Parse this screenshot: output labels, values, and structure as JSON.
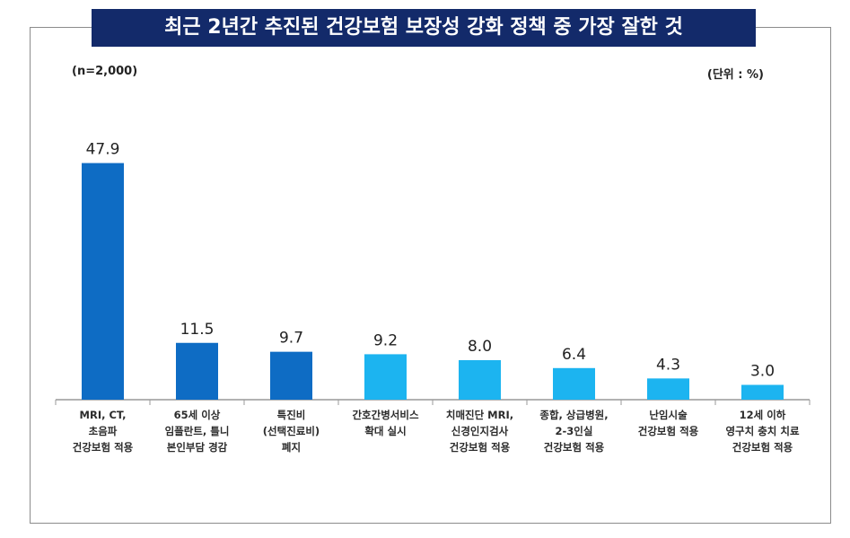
{
  "header": {
    "title": "최근 2년간 추진된 건강보험 보장성 강화 정책 중 가장 잘한 것",
    "sample_note": "(n=2,000)",
    "unit_note": "(단위 : %)"
  },
  "colors": {
    "title_bg": "#132a6a",
    "bar_dark": "#0e6cc4",
    "bar_light": "#1cb4f0",
    "axis": "#999999"
  },
  "chart_data": {
    "type": "bar",
    "title": "최근 2년간 추진된 건강보험 보장성 강화 정책 중 가장 잘한 것",
    "xlabel": "",
    "ylabel": "",
    "unit": "%",
    "ylim": [
      0,
      50
    ],
    "grid": false,
    "categories": [
      [
        "MRI, CT,",
        "초음파",
        "건강보험 적용"
      ],
      [
        "65세 이상",
        "임플란트, 틀니",
        "본인부담 경감"
      ],
      [
        "특진비",
        "(선택진료비)",
        "폐지"
      ],
      [
        "간호간병서비스",
        "확대 실시"
      ],
      [
        "치매진단 MRI,",
        "신경인지검사",
        "건강보험 적용"
      ],
      [
        "종합, 상급병원,",
        "2-3인실",
        "건강보험 적용"
      ],
      [
        "난임시술",
        "건강보험 적용"
      ],
      [
        "12세 이하",
        "영구치 충치 치료",
        "건강보험 적용"
      ]
    ],
    "values": [
      47.9,
      11.5,
      9.7,
      9.2,
      8.0,
      6.4,
      4.3,
      3.0
    ],
    "value_labels": [
      "47.9",
      "11.5",
      "9.7",
      "9.2",
      "8.0",
      "6.4",
      "4.3",
      "3.0"
    ],
    "bar_colors": [
      "dark",
      "dark",
      "dark",
      "light",
      "light",
      "light",
      "light",
      "light"
    ]
  }
}
